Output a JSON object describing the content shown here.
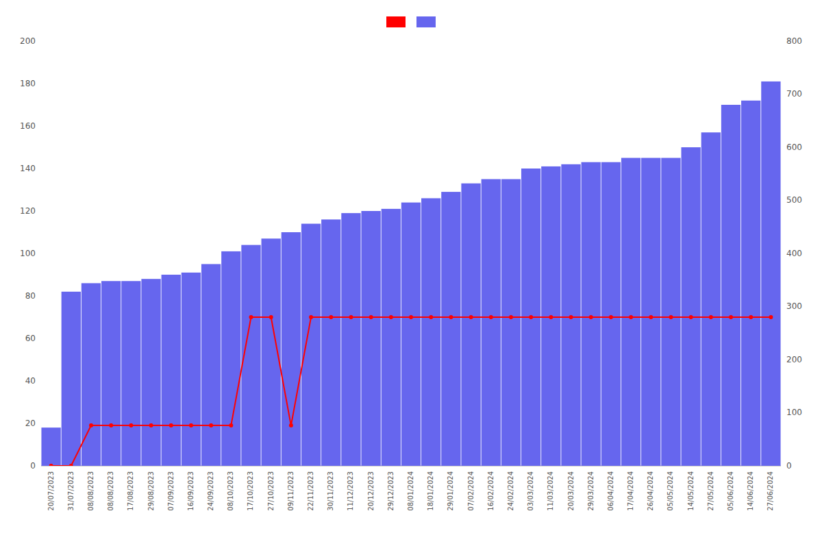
{
  "chart_data": {
    "type": "bar",
    "categories": [
      "20/07/2023",
      "31/07/2023",
      "08/08/2023",
      "08/08/2023",
      "17/08/2023",
      "29/08/2023",
      "07/09/2023",
      "16/09/2023",
      "24/09/2023",
      "08/10/2023",
      "17/10/2023",
      "27/10/2023",
      "09/11/2023",
      "22/11/2023",
      "30/11/2023",
      "11/12/2023",
      "20/12/2023",
      "29/12/2023",
      "08/01/2024",
      "18/01/2024",
      "29/01/2024",
      "07/02/2024",
      "16/02/2024",
      "24/02/2024",
      "03/03/2024",
      "11/03/2024",
      "20/03/2024",
      "29/03/2024",
      "06/04/2024",
      "17/04/2024",
      "26/04/2024",
      "05/05/2024",
      "14/05/2024",
      "27/05/2024",
      "05/06/2024",
      "14/06/2024",
      "27/06/2024"
    ],
    "series": [
      {
        "type": "bar",
        "color": "#6666ee",
        "values": [
          18,
          82,
          86,
          87,
          87,
          88,
          90,
          91,
          95,
          101,
          104,
          107,
          110,
          114,
          116,
          119,
          120,
          121,
          124,
          126,
          129,
          133,
          135,
          135,
          140,
          141,
          142,
          143,
          143,
          145,
          145,
          145,
          150,
          157,
          170,
          172,
          181
        ]
      },
      {
        "type": "line",
        "color": "#ff0000",
        "marker": "circle",
        "values": [
          0,
          0,
          19,
          19,
          19,
          19,
          19,
          19,
          19,
          19,
          70,
          70,
          19,
          70,
          70,
          70,
          70,
          70,
          70,
          70,
          70,
          70,
          70,
          70,
          70,
          70,
          70,
          70,
          70,
          70,
          70,
          70,
          70,
          70,
          70,
          70,
          70
        ]
      }
    ],
    "ylim": [
      0,
      200
    ],
    "yticks": [
      0,
      20,
      40,
      60,
      80,
      100,
      120,
      140,
      160,
      180,
      200
    ],
    "y2lim": [
      0,
      800
    ],
    "y2ticks": [
      0,
      100,
      200,
      300,
      400,
      500,
      600,
      700,
      800
    ],
    "grid": false,
    "legend": "upper center"
  }
}
